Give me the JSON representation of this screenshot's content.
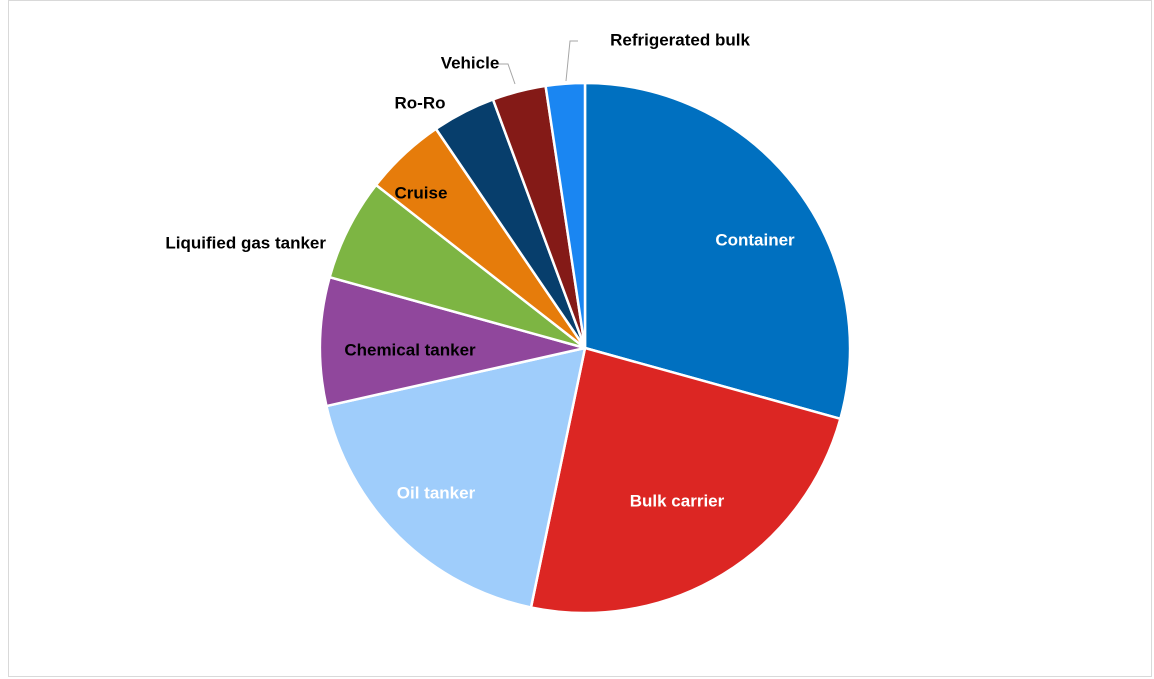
{
  "chart_data": {
    "type": "pie",
    "title": "",
    "legend": "none",
    "start_angle_deg": 0,
    "direction": "clockwise",
    "slices": [
      {
        "label": "Container",
        "value": 29.6,
        "color": "#0070c0",
        "label_color": "#ffffff",
        "label_pos": "inside"
      },
      {
        "label": "Bulk carrier",
        "value": 24.2,
        "color": "#dc2623",
        "label_color": "#ffffff",
        "label_pos": "inside"
      },
      {
        "label": "Oil tanker",
        "value": 18.4,
        "color": "#9fcdfb",
        "label_color": "#ffffff",
        "label_pos": "inside"
      },
      {
        "label": "Chemical tanker",
        "value": 7.9,
        "color": "#90479c",
        "label_color": "#000000",
        "label_pos": "inside"
      },
      {
        "label": "Liquified gas tanker",
        "value": 6.3,
        "color": "#7db543",
        "label_color": "#000000",
        "label_pos": "outside"
      },
      {
        "label": "Cruise",
        "value": 5.0,
        "color": "#e67c0b",
        "label_color": "#000000",
        "label_pos": "inside"
      },
      {
        "label": "Ro-Ro",
        "value": 3.9,
        "color": "#073e6c",
        "label_color": "#000000",
        "label_pos": "outside"
      },
      {
        "label": "Vehicle",
        "value": 3.3,
        "color": "#841a17",
        "label_color": "#000000",
        "label_pos": "outside"
      },
      {
        "label": "Refrigerated bulk",
        "value": 2.4,
        "color": "#1a86f2",
        "label_color": "#000000",
        "label_pos": "outside"
      }
    ]
  }
}
